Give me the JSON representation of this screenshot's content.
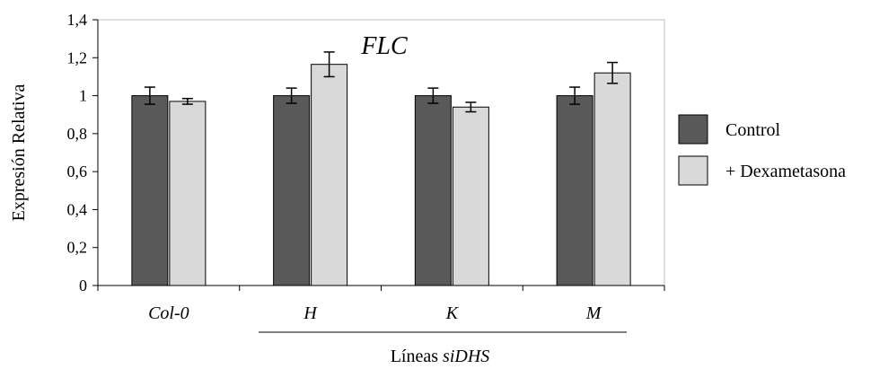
{
  "chart_data": {
    "type": "bar",
    "title": "FLC",
    "ylabel": "Expresión Relativa",
    "xlabel_prefix": "Líneas ",
    "xlabel_italic": "siDHS",
    "categories": [
      "Col-0",
      "H",
      "K",
      "M"
    ],
    "grouped_categories": [
      "H",
      "K",
      "M"
    ],
    "ylim": [
      0,
      1.4
    ],
    "ytick_values": [
      0,
      0.2,
      0.4,
      0.6,
      0.8,
      1,
      1.2,
      1.4
    ],
    "ytick_labels": [
      "0",
      "0,2",
      "0,4",
      "0,6",
      "0,8",
      "1",
      "1,2",
      "1,4"
    ],
    "series": [
      {
        "name": "Control",
        "color": "#595959",
        "values": [
          1.0,
          1.0,
          1.0,
          1.0
        ],
        "errors": [
          0.045,
          0.04,
          0.04,
          0.045
        ]
      },
      {
        "name": "+ Dexametasona",
        "color": "#d9d9d9",
        "values": [
          0.97,
          1.165,
          0.94,
          1.12
        ],
        "errors": [
          0.015,
          0.065,
          0.025,
          0.055
        ]
      }
    ],
    "legend_position": "right",
    "grid": false
  }
}
